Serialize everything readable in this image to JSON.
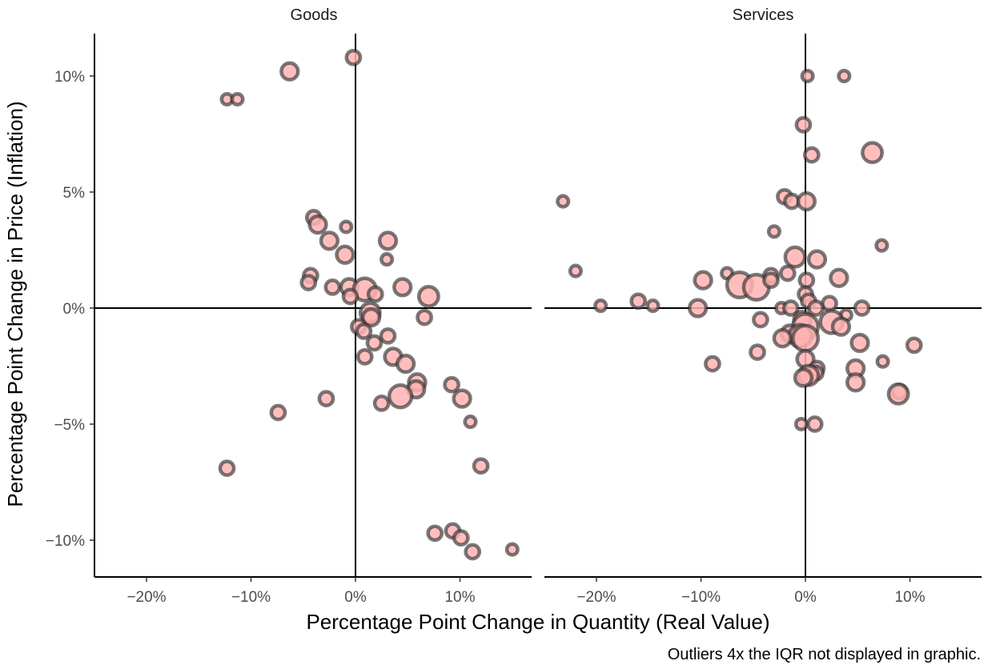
{
  "chart_data": {
    "type": "scatter",
    "xlabel": "Percentage Point Change in Quantity (Real Value)",
    "ylabel": "Percentage Point Change in Price (Inflation)",
    "caption": "Outliers 4x the IQR not displayed in graphic.",
    "x_ticks": [
      "−20%",
      "−10%",
      "0%",
      "10%"
    ],
    "y_ticks": [
      "−10%",
      "−5%",
      "0%",
      "5%",
      "10%"
    ],
    "xlim": [
      -25,
      17
    ],
    "ylim": [
      -11.6,
      11.8
    ],
    "grid": false,
    "point_fill": "#ffb3b3",
    "point_stroke": "#333333",
    "reference_lines": {
      "x": 0,
      "y": 0
    },
    "panels": [
      {
        "name": "Goods",
        "points": [
          {
            "x": -0.2,
            "y": 10.8,
            "s": 2
          },
          {
            "x": -6.3,
            "y": 10.2,
            "s": 3
          },
          {
            "x": -12.3,
            "y": 9.0,
            "s": 1
          },
          {
            "x": -11.3,
            "y": 9.0,
            "s": 1
          },
          {
            "x": -4.0,
            "y": 3.9,
            "s": 2
          },
          {
            "x": -3.6,
            "y": 3.6,
            "s": 3
          },
          {
            "x": -0.9,
            "y": 3.5,
            "s": 1
          },
          {
            "x": -2.5,
            "y": 2.9,
            "s": 3
          },
          {
            "x": 3.1,
            "y": 2.9,
            "s": 3
          },
          {
            "x": -1.0,
            "y": 2.3,
            "s": 3
          },
          {
            "x": 3.0,
            "y": 2.1,
            "s": 1
          },
          {
            "x": -4.3,
            "y": 1.4,
            "s": 2
          },
          {
            "x": -4.5,
            "y": 1.1,
            "s": 2
          },
          {
            "x": -2.2,
            "y": 0.9,
            "s": 2
          },
          {
            "x": -0.6,
            "y": 0.9,
            "s": 3
          },
          {
            "x": 0.9,
            "y": 0.8,
            "s": 5
          },
          {
            "x": 4.5,
            "y": 0.9,
            "s": 3
          },
          {
            "x": 1.9,
            "y": 0.6,
            "s": 2
          },
          {
            "x": 7.0,
            "y": 0.5,
            "s": 4
          },
          {
            "x": -0.5,
            "y": 0.5,
            "s": 2
          },
          {
            "x": 1.4,
            "y": -0.2,
            "s": 4
          },
          {
            "x": 1.5,
            "y": -0.4,
            "s": 3
          },
          {
            "x": 6.6,
            "y": -0.4,
            "s": 2
          },
          {
            "x": 0.3,
            "y": -0.8,
            "s": 2
          },
          {
            "x": 0.8,
            "y": -1.0,
            "s": 2
          },
          {
            "x": 3.1,
            "y": -1.2,
            "s": 2
          },
          {
            "x": 1.8,
            "y": -1.5,
            "s": 2
          },
          {
            "x": 0.9,
            "y": -2.1,
            "s": 2
          },
          {
            "x": 3.6,
            "y": -2.1,
            "s": 3
          },
          {
            "x": 4.8,
            "y": -2.4,
            "s": 3
          },
          {
            "x": 5.9,
            "y": -3.2,
            "s": 3
          },
          {
            "x": 5.8,
            "y": -3.5,
            "s": 3
          },
          {
            "x": 4.3,
            "y": -3.8,
            "s": 5
          },
          {
            "x": 9.2,
            "y": -3.3,
            "s": 2
          },
          {
            "x": 10.2,
            "y": -3.9,
            "s": 3
          },
          {
            "x": 2.5,
            "y": -4.1,
            "s": 2
          },
          {
            "x": -2.8,
            "y": -3.9,
            "s": 2
          },
          {
            "x": -7.4,
            "y": -4.5,
            "s": 2
          },
          {
            "x": 11.0,
            "y": -4.9,
            "s": 1
          },
          {
            "x": -12.3,
            "y": -6.9,
            "s": 2
          },
          {
            "x": 12.0,
            "y": -6.8,
            "s": 2
          },
          {
            "x": 7.6,
            "y": -9.7,
            "s": 2
          },
          {
            "x": 9.3,
            "y": -9.6,
            "s": 2
          },
          {
            "x": 10.1,
            "y": -9.9,
            "s": 2
          },
          {
            "x": 11.2,
            "y": -10.5,
            "s": 2
          },
          {
            "x": 15.0,
            "y": -10.4,
            "s": 1
          }
        ]
      },
      {
        "name": "Services",
        "points": [
          {
            "x": 0.2,
            "y": 10.0,
            "s": 1
          },
          {
            "x": 3.7,
            "y": 10.0,
            "s": 1
          },
          {
            "x": -0.2,
            "y": 7.9,
            "s": 2
          },
          {
            "x": 0.6,
            "y": 6.6,
            "s": 2
          },
          {
            "x": 6.4,
            "y": 6.7,
            "s": 4
          },
          {
            "x": -23.2,
            "y": 4.6,
            "s": 1
          },
          {
            "x": -2.0,
            "y": 4.8,
            "s": 2
          },
          {
            "x": -1.3,
            "y": 4.6,
            "s": 2
          },
          {
            "x": 0.1,
            "y": 4.6,
            "s": 3
          },
          {
            "x": -3.0,
            "y": 3.3,
            "s": 1
          },
          {
            "x": 7.3,
            "y": 2.7,
            "s": 1
          },
          {
            "x": -1.0,
            "y": 2.2,
            "s": 4
          },
          {
            "x": 1.1,
            "y": 2.1,
            "s": 3
          },
          {
            "x": -22.0,
            "y": 1.6,
            "s": 1
          },
          {
            "x": -7.5,
            "y": 1.5,
            "s": 1
          },
          {
            "x": -1.7,
            "y": 1.5,
            "s": 2
          },
          {
            "x": -3.3,
            "y": 1.4,
            "s": 2
          },
          {
            "x": 3.2,
            "y": 1.3,
            "s": 3
          },
          {
            "x": 0.1,
            "y": 1.2,
            "s": 2
          },
          {
            "x": -9.8,
            "y": 1.2,
            "s": 3
          },
          {
            "x": -6.3,
            "y": 1.0,
            "s": 6
          },
          {
            "x": -4.7,
            "y": 0.9,
            "s": 6
          },
          {
            "x": -3.3,
            "y": 1.2,
            "s": 2
          },
          {
            "x": 0.0,
            "y": 0.6,
            "s": 2
          },
          {
            "x": 0.3,
            "y": 0.3,
            "s": 2
          },
          {
            "x": 2.3,
            "y": 0.2,
            "s": 2
          },
          {
            "x": -19.6,
            "y": 0.1,
            "s": 1
          },
          {
            "x": -16.0,
            "y": 0.3,
            "s": 2
          },
          {
            "x": -14.6,
            "y": 0.1,
            "s": 1
          },
          {
            "x": -10.3,
            "y": 0.0,
            "s": 3
          },
          {
            "x": -2.3,
            "y": 0.0,
            "s": 1
          },
          {
            "x": -1.4,
            "y": 0.0,
            "s": 2
          },
          {
            "x": 1.0,
            "y": 0.0,
            "s": 2
          },
          {
            "x": 5.4,
            "y": 0.0,
            "s": 2
          },
          {
            "x": 3.9,
            "y": -0.3,
            "s": 1
          },
          {
            "x": -4.3,
            "y": -0.5,
            "s": 2
          },
          {
            "x": -0.3,
            "y": -0.5,
            "s": 3
          },
          {
            "x": 2.5,
            "y": -0.6,
            "s": 5
          },
          {
            "x": 0.0,
            "y": -0.8,
            "s": 6
          },
          {
            "x": 3.4,
            "y": -0.8,
            "s": 3
          },
          {
            "x": -1.5,
            "y": -1.1,
            "s": 3
          },
          {
            "x": -0.5,
            "y": -1.2,
            "s": 5
          },
          {
            "x": 0.0,
            "y": -1.3,
            "s": 6
          },
          {
            "x": -2.2,
            "y": -1.3,
            "s": 3
          },
          {
            "x": 5.2,
            "y": -1.5,
            "s": 3
          },
          {
            "x": 10.4,
            "y": -1.6,
            "s": 2
          },
          {
            "x": -4.6,
            "y": -1.9,
            "s": 2
          },
          {
            "x": 0.0,
            "y": -2.2,
            "s": 3
          },
          {
            "x": -8.9,
            "y": -2.4,
            "s": 2
          },
          {
            "x": 7.4,
            "y": -2.3,
            "s": 1
          },
          {
            "x": 1.1,
            "y": -2.6,
            "s": 2
          },
          {
            "x": 1.0,
            "y": -2.8,
            "s": 2
          },
          {
            "x": 4.8,
            "y": -2.6,
            "s": 3
          },
          {
            "x": 0.3,
            "y": -2.9,
            "s": 4
          },
          {
            "x": -0.2,
            "y": -3.0,
            "s": 3
          },
          {
            "x": 4.8,
            "y": -3.2,
            "s": 3
          },
          {
            "x": 9.0,
            "y": -3.6,
            "s": 2
          },
          {
            "x": 8.9,
            "y": -3.7,
            "s": 4
          },
          {
            "x": -0.4,
            "y": -5.0,
            "s": 1
          },
          {
            "x": 0.9,
            "y": -5.0,
            "s": 2
          }
        ]
      }
    ]
  }
}
